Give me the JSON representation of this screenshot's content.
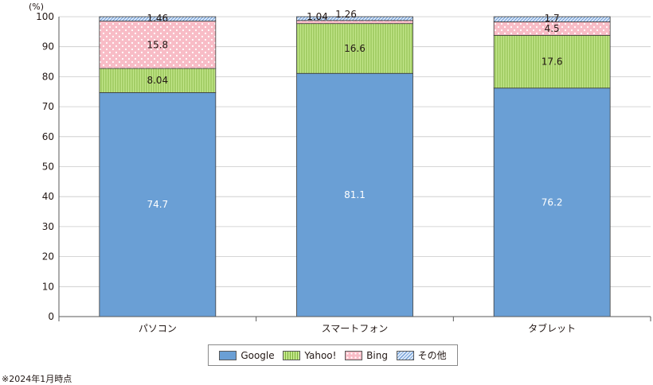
{
  "chart_data": {
    "type": "bar",
    "stacked": true,
    "ylabel": "(%)",
    "ylim": [
      0,
      100
    ],
    "yticks": [
      "0",
      "10",
      "20",
      "30",
      "40",
      "50",
      "60",
      "70",
      "80",
      "90",
      "100"
    ],
    "categories": [
      "パソコン",
      "スマートフォン",
      "タブレット"
    ],
    "series": [
      {
        "name": "Google",
        "values": [
          74.7,
          81.1,
          76.2
        ],
        "labels": [
          "74.7",
          "81.1",
          "76.2"
        ],
        "color": "#6a9fd5"
      },
      {
        "name": "Yahoo!",
        "values": [
          8.04,
          16.6,
          17.6
        ],
        "labels": [
          "8.04",
          "16.6",
          "17.6"
        ],
        "color": "#b8e07a"
      },
      {
        "name": "Bing",
        "values": [
          15.8,
          1.04,
          4.5
        ],
        "labels": [
          "15.8",
          "1.04",
          "4.5"
        ],
        "color": "#f8b8c2"
      },
      {
        "name": "その他",
        "values": [
          1.46,
          1.26,
          1.7
        ],
        "labels": [
          "1.46",
          "1.26",
          "1.7"
        ],
        "color": "#a7c8ee"
      }
    ],
    "grid": true,
    "legend": "bottom"
  },
  "footnote": "※2024年1月時点"
}
